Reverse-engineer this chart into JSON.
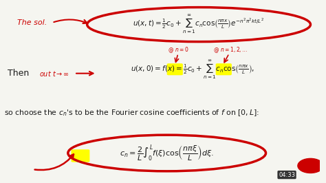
{
  "bg_color": "#f5f5f0",
  "text_color": "#1a1a1a",
  "red_color": "#cc0000",
  "yellow_highlight": "#ffff00",
  "title_annotation": "The sol.",
  "then_text": "Then",
  "choose_text": "so choose the $c_n$’s to be the Fourier cosine coefficients of $f$ on $[0, L]$:",
  "eq1": "$u(x,t) = \\dfrac{1}{2}c_0 + \\displaystyle\\sum_{n=1}^{\\infty} c_n \\cos\\!\\left(\\dfrac{n\\pi x}{L}\\right)e^{-n^2\\pi^2 kt/L^2}$",
  "eq2": "$u(x,0) = f(x) = \\dfrac{1}{2}c_0 + \\displaystyle\\sum_{n=1}^{\\infty} c_n \\cos\\!\\left(\\dfrac{n\\pi x}{L}\\right),$",
  "eq3": "$c_n = \\dfrac{2}{L}\\displaystyle\\int_0^L f(\\xi)\\cos\\!\\left(\\dfrac{n\\pi\\xi}{L}\\right)d\\xi.$",
  "annotation_n0": "@ $n{=}0$",
  "annotation_n1": "@ $n{=}1,2,\\ldots$",
  "out_too": "out $t{\\to}\\infty$",
  "time_stamp": "04:33"
}
